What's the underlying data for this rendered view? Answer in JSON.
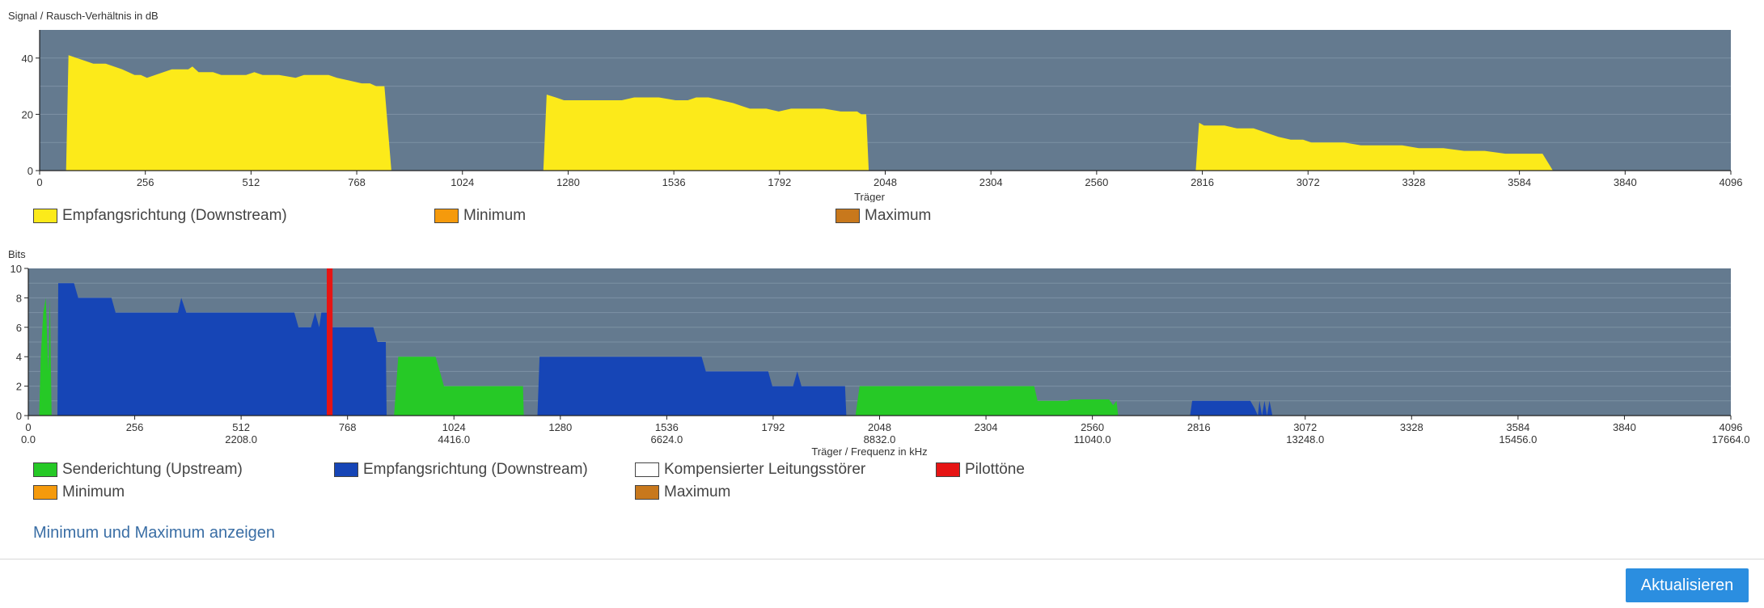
{
  "colors": {
    "plot_bg": "#647a8f",
    "snr_fill": "#fcea1a",
    "upstream": "#26c926",
    "downstream": "#1645b6",
    "pilot": "#e61414",
    "minimum": "#f59a0c",
    "maximum": "#c8781c",
    "compensated": "#ffffff"
  },
  "snr_legend": [
    {
      "label": "Empfangsrichtung (Downstream)",
      "color_key": "snr_fill"
    },
    {
      "label": "Minimum",
      "color_key": "minimum"
    },
    {
      "label": "Maximum",
      "color_key": "maximum"
    }
  ],
  "bits_legend": [
    {
      "label": "Senderichtung (Upstream)",
      "color_key": "upstream"
    },
    {
      "label": "Empfangsrichtung (Downstream)",
      "color_key": "downstream"
    },
    {
      "label": "Kompensierter Leitungsstörer",
      "color_key": "compensated"
    },
    {
      "label": "Pilottöne",
      "color_key": "pilot"
    },
    {
      "label": "Minimum",
      "color_key": "minimum"
    },
    {
      "label": "Maximum",
      "color_key": "maximum"
    }
  ],
  "toggle_link": "Minimum und Maximum anzeigen",
  "refresh_button": "Aktualisieren",
  "chart_data": [
    {
      "type": "area",
      "ylabel": "Signal / Rausch-Verhältnis in dB",
      "xlabel": "Träger",
      "xlim": [
        0,
        4096
      ],
      "ylim": [
        0,
        50
      ],
      "xticks": [
        0,
        256,
        512,
        768,
        1024,
        1280,
        1536,
        1792,
        2048,
        2304,
        2560,
        2816,
        3072,
        3328,
        3584,
        3840,
        4096
      ],
      "yticks": [
        0,
        20,
        40
      ],
      "grid": true,
      "series": [
        {
          "name": "Empfangsrichtung (Downstream)",
          "color_key": "snr_fill",
          "segments": [
            [
              [
                64,
                0
              ],
              [
                70,
                41
              ],
              [
                90,
                40
              ],
              [
                110,
                39
              ],
              [
                130,
                38
              ],
              [
                160,
                38
              ],
              [
                180,
                37
              ],
              [
                200,
                36
              ],
              [
                215,
                35
              ],
              [
                230,
                34
              ],
              [
                245,
                34
              ],
              [
                260,
                33
              ],
              [
                280,
                34
              ],
              [
                300,
                35
              ],
              [
                320,
                36
              ],
              [
                340,
                36
              ],
              [
                360,
                36
              ],
              [
                370,
                37
              ],
              [
                385,
                35
              ],
              [
                420,
                35
              ],
              [
                440,
                34
              ],
              [
                480,
                34
              ],
              [
                500,
                34
              ],
              [
                520,
                35
              ],
              [
                540,
                34
              ],
              [
                580,
                34
              ],
              [
                620,
                33
              ],
              [
                640,
                34
              ],
              [
                700,
                34
              ],
              [
                720,
                33
              ],
              [
                750,
                32
              ],
              [
                780,
                31
              ],
              [
                800,
                31
              ],
              [
                815,
                30
              ],
              [
                835,
                30
              ],
              [
                852,
                0
              ]
            ],
            [
              [
                1220,
                0
              ],
              [
                1228,
                27
              ],
              [
                1250,
                26
              ],
              [
                1270,
                25
              ],
              [
                1300,
                25
              ],
              [
                1360,
                25
              ],
              [
                1410,
                25
              ],
              [
                1440,
                26
              ],
              [
                1500,
                26
              ],
              [
                1540,
                25
              ],
              [
                1570,
                25
              ],
              [
                1590,
                26
              ],
              [
                1620,
                26
              ],
              [
                1650,
                25
              ],
              [
                1680,
                24
              ],
              [
                1700,
                23
              ],
              [
                1720,
                22
              ],
              [
                1760,
                22
              ],
              [
                1790,
                21
              ],
              [
                1820,
                22
              ],
              [
                1900,
                22
              ],
              [
                1940,
                21
              ],
              [
                1980,
                21
              ],
              [
                1990,
                20
              ],
              [
                2002,
                20
              ],
              [
                2008,
                0
              ]
            ],
            [
              [
                2800,
                0
              ],
              [
                2808,
                17
              ],
              [
                2820,
                16
              ],
              [
                2870,
                16
              ],
              [
                2900,
                15
              ],
              [
                2940,
                15
              ],
              [
                2960,
                14
              ],
              [
                2980,
                13
              ],
              [
                3000,
                12
              ],
              [
                3030,
                11
              ],
              [
                3060,
                11
              ],
              [
                3080,
                10
              ],
              [
                3160,
                10
              ],
              [
                3200,
                9
              ],
              [
                3250,
                9
              ],
              [
                3300,
                9
              ],
              [
                3340,
                8
              ],
              [
                3400,
                8
              ],
              [
                3450,
                7
              ],
              [
                3500,
                7
              ],
              [
                3550,
                6
              ],
              [
                3605,
                6
              ],
              [
                3640,
                6
              ],
              [
                3665,
                0
              ]
            ]
          ]
        }
      ]
    },
    {
      "type": "area",
      "ylabel": "Bits",
      "xlabel": "Träger / Frequenz in kHz",
      "xlim": [
        0,
        4096
      ],
      "ylim": [
        0,
        10
      ],
      "xticks": [
        0,
        256,
        512,
        768,
        1024,
        1280,
        1536,
        1792,
        2048,
        2304,
        2560,
        2816,
        3072,
        3328,
        3584,
        3840,
        4096
      ],
      "freq_ticks": [
        "0.0",
        "2208.0",
        "4416.0",
        "6624.0",
        "8832.0",
        "11040.0",
        "13248.0",
        "15456.0",
        "17664.0"
      ],
      "yticks": [
        0,
        2,
        4,
        6,
        8,
        10
      ],
      "grid": true,
      "series": [
        {
          "name": "Senderichtung (Upstream)",
          "color_key": "upstream",
          "segments": [
            [
              [
                26,
                0
              ],
              [
                30,
                4
              ],
              [
                36,
                7
              ],
              [
                42,
                8
              ],
              [
                48,
                3
              ],
              [
                52,
                8
              ],
              [
                56,
                0
              ]
            ],
            [
              [
                880,
                0
              ],
              [
                890,
                4
              ],
              [
                980,
                4
              ],
              [
                990,
                3
              ],
              [
                1000,
                2
              ],
              [
                1190,
                2
              ],
              [
                1192,
                0
              ]
            ],
            [
              [
                1990,
                0
              ],
              [
                2000,
                2
              ],
              [
                2420,
                2
              ],
              [
                2428,
                1
              ],
              [
                2500,
                1
              ],
              [
                2510,
                1.1
              ],
              [
                2600,
                1.1
              ],
              [
                2610,
                0.7
              ],
              [
                2618,
                1
              ],
              [
                2622,
                0
              ]
            ]
          ]
        },
        {
          "name": "Empfangsrichtung (Downstream)",
          "color_key": "downstream",
          "segments": [
            [
              [
                70,
                0
              ],
              [
                72,
                9
              ],
              [
                110,
                9
              ],
              [
                120,
                8
              ],
              [
                200,
                8
              ],
              [
                210,
                7
              ],
              [
                360,
                7
              ],
              [
                368,
                8
              ],
              [
                380,
                7
              ],
              [
                640,
                7
              ],
              [
                650,
                6
              ],
              [
                680,
                6
              ],
              [
                690,
                7
              ],
              [
                700,
                6
              ],
              [
                705,
                7
              ],
              [
                720,
                7
              ],
              [
                722,
                0
              ]
            ],
            [
              [
                722,
                0
              ],
              [
                725,
                6
              ],
              [
                830,
                6
              ],
              [
                840,
                5
              ],
              [
                860,
                5
              ],
              [
                862,
                0
              ]
            ],
            [
              [
                1225,
                0
              ],
              [
                1230,
                4
              ],
              [
                1620,
                4
              ],
              [
                1630,
                3
              ],
              [
                1780,
                3
              ],
              [
                1790,
                2
              ],
              [
                1840,
                2
              ],
              [
                1850,
                3
              ],
              [
                1860,
                2
              ],
              [
                1965,
                2
              ],
              [
                1968,
                0
              ]
            ],
            [
              [
                2795,
                0
              ],
              [
                2800,
                1
              ],
              [
                2940,
                1
              ],
              [
                2950,
                0.5
              ],
              [
                2958,
                0
              ],
              [
                2962,
                1
              ],
              [
                2968,
                0
              ],
              [
                2974,
                1
              ],
              [
                2980,
                0
              ],
              [
                2986,
                1
              ],
              [
                2993,
                0
              ]
            ]
          ]
        },
        {
          "name": "Pilottöne",
          "color_key": "pilot",
          "type": "band",
          "segments": [
            [
              [
                718,
                0
              ],
              [
                718,
                10
              ],
              [
                732,
                10
              ],
              [
                732,
                0
              ]
            ]
          ]
        }
      ]
    }
  ],
  "chart_texts": {
    "snr_ylabel": "Signal / Rausch-Verhältnis in dB",
    "snr_xlabel": "Träger",
    "bits_ylabel": "Bits",
    "bits_xlabel": "Träger / Frequenz in kHz"
  }
}
